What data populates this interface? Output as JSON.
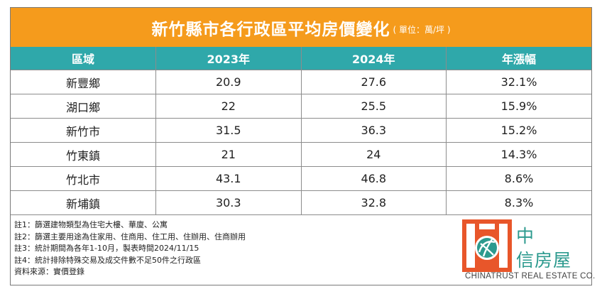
{
  "title": {
    "main": "新竹縣市各行政區平均房價變化",
    "unit": "( 單位：萬/坪 )"
  },
  "table": {
    "headers": [
      "區域",
      "2023年",
      "2024年",
      "年漲幅"
    ],
    "rows": [
      [
        "新豐鄉",
        "20.9",
        "27.6",
        "32.1%"
      ],
      [
        "湖口鄉",
        "22",
        "25.5",
        "15.9%"
      ],
      [
        "新竹市",
        "31.5",
        "36.3",
        "15.2%"
      ],
      [
        "竹東鎮",
        "21",
        "24",
        "14.3%"
      ],
      [
        "竹北市",
        "43.1",
        "46.8",
        "8.6%"
      ],
      [
        "新埔鎮",
        "30.3",
        "32.8",
        "8.3%"
      ]
    ]
  },
  "notes": [
    "註1：篩選建物類型為住宅大樓、華廈、公寓",
    "註2：篩選主要用途為住家用、住商用、住工用、住辦用、住商辦用",
    "註3：統計期間為各年1-10月，製表時間2024/11/15",
    "註4：統計排除特殊交易及成交件數不足50件之行政區",
    "資料來源：實價登錄"
  ],
  "logo": {
    "name_line1": "中",
    "name_line2": "信房屋",
    "english": "CHINATRUST REAL ESTATE CO."
  },
  "colors": {
    "title_bg": "#f59b1c",
    "header_bg": "#2fa8aa",
    "logo_orange": "#e8562a",
    "logo_teal": "#2c9a8e"
  }
}
